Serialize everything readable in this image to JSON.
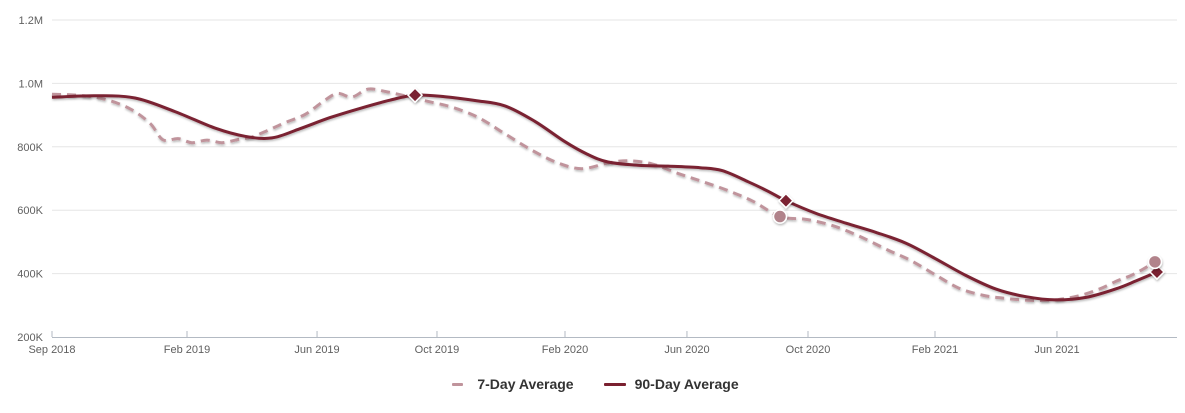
{
  "chart_data": {
    "type": "line",
    "title": "",
    "value_unit": "K",
    "grid": true,
    "legend_position": "bottom-center",
    "y_axis": {
      "min": 200,
      "max": 1200,
      "ticks": [
        {
          "label": "200K",
          "v": 200
        },
        {
          "label": "400K",
          "v": 400
        },
        {
          "label": "600K",
          "v": 600
        },
        {
          "label": "800K",
          "v": 800
        },
        {
          "label": "1.0M",
          "v": 1000
        },
        {
          "label": "1.2M",
          "v": 1200
        }
      ]
    },
    "x_axis": {
      "ticks": [
        {
          "label": "Sep 2018",
          "f": 0.0
        },
        {
          "label": "Feb 2019",
          "f": 0.12
        },
        {
          "label": "Jun 2019",
          "f": 0.2356
        },
        {
          "label": "Oct 2019",
          "f": 0.3422
        },
        {
          "label": "Feb 2020",
          "f": 0.456
        },
        {
          "label": "Jun 2020",
          "f": 0.5644
        },
        {
          "label": "Oct 2020",
          "f": 0.672
        },
        {
          "label": "Feb 2021",
          "f": 0.7849
        },
        {
          "label": "Jun 2021",
          "f": 0.8933
        }
      ]
    },
    "series": [
      {
        "name": "7-Day Average",
        "style": "dashed",
        "color": "#c0949c",
        "marker_shape": "circle",
        "marker_color": "#b1838b",
        "points": [
          [
            0.0,
            966
          ],
          [
            0.0249,
            962
          ],
          [
            0.0471,
            950
          ],
          [
            0.0693,
            920
          ],
          [
            0.0871,
            874
          ],
          [
            0.0987,
            822
          ],
          [
            0.112,
            826
          ],
          [
            0.1244,
            813
          ],
          [
            0.1378,
            821
          ],
          [
            0.1511,
            813
          ],
          [
            0.1653,
            823
          ],
          [
            0.1778,
            831
          ],
          [
            0.192,
            852
          ],
          [
            0.2071,
            876
          ],
          [
            0.2249,
            902
          ],
          [
            0.24,
            940
          ],
          [
            0.2533,
            968
          ],
          [
            0.2667,
            957
          ],
          [
            0.2809,
            982
          ],
          [
            0.2969,
            974
          ],
          [
            0.3138,
            961
          ],
          [
            0.3333,
            944
          ],
          [
            0.3556,
            925
          ],
          [
            0.3787,
            893
          ],
          [
            0.4027,
            841
          ],
          [
            0.4267,
            789
          ],
          [
            0.4498,
            749
          ],
          [
            0.4711,
            731
          ],
          [
            0.4942,
            749
          ],
          [
            0.512,
            756
          ],
          [
            0.5333,
            746
          ],
          [
            0.5564,
            716
          ],
          [
            0.5778,
            691
          ],
          [
            0.6,
            663
          ],
          [
            0.6231,
            628
          ],
          [
            0.6471,
            580
          ],
          [
            0.6702,
            571
          ],
          [
            0.6942,
            551
          ],
          [
            0.7182,
            517
          ],
          [
            0.7431,
            474
          ],
          [
            0.7636,
            441
          ],
          [
            0.7849,
            397
          ],
          [
            0.8062,
            354
          ],
          [
            0.8284,
            331
          ],
          [
            0.8498,
            321
          ],
          [
            0.872,
            315
          ],
          [
            0.8942,
            318
          ],
          [
            0.9138,
            331
          ],
          [
            0.9316,
            352
          ],
          [
            0.9467,
            377
          ],
          [
            0.9591,
            394
          ],
          [
            0.9698,
            414
          ],
          [
            0.9804,
            437
          ]
        ]
      },
      {
        "name": "90-Day Average",
        "style": "solid",
        "color": "#7a2030",
        "marker_shape": "diamond",
        "marker_color": "#7a2030",
        "points": [
          [
            0.0,
            956
          ],
          [
            0.0382,
            961
          ],
          [
            0.0738,
            954
          ],
          [
            0.1093,
            911
          ],
          [
            0.1449,
            859
          ],
          [
            0.1716,
            833
          ],
          [
            0.1956,
            828
          ],
          [
            0.2204,
            857
          ],
          [
            0.2471,
            892
          ],
          [
            0.2738,
            921
          ],
          [
            0.3004,
            947
          ],
          [
            0.3227,
            963
          ],
          [
            0.3493,
            958
          ],
          [
            0.376,
            946
          ],
          [
            0.4027,
            929
          ],
          [
            0.4293,
            880
          ],
          [
            0.456,
            816
          ],
          [
            0.4756,
            777
          ],
          [
            0.4942,
            752
          ],
          [
            0.5209,
            742
          ],
          [
            0.5476,
            739
          ],
          [
            0.576,
            734
          ],
          [
            0.5956,
            725
          ],
          [
            0.6187,
            690
          ],
          [
            0.6364,
            660
          ],
          [
            0.6524,
            630
          ],
          [
            0.6791,
            590
          ],
          [
            0.7058,
            559
          ],
          [
            0.7324,
            530
          ],
          [
            0.7591,
            496
          ],
          [
            0.7849,
            448
          ],
          [
            0.8124,
            394
          ],
          [
            0.8391,
            351
          ],
          [
            0.8658,
            327
          ],
          [
            0.8924,
            317
          ],
          [
            0.9191,
            325
          ],
          [
            0.9458,
            352
          ],
          [
            0.9636,
            377
          ],
          [
            0.9822,
            405
          ]
        ]
      }
    ],
    "markers": [
      {
        "series": 1,
        "shape": "diamond",
        "f": 0.3227,
        "v": 963
      },
      {
        "series": 1,
        "shape": "diamond",
        "f": 0.6524,
        "v": 630
      },
      {
        "series": 1,
        "shape": "diamond",
        "f": 0.9822,
        "v": 405
      },
      {
        "series": 0,
        "shape": "circle",
        "f": 0.6471,
        "v": 580
      },
      {
        "series": 0,
        "shape": "circle",
        "f": 0.9804,
        "v": 437
      }
    ]
  },
  "colors": {
    "gridline": "#e6e6e6",
    "axis_line": "#b3bac3",
    "tick_label": "#606060",
    "legend_text": "#333333",
    "background": "#ffffff"
  }
}
